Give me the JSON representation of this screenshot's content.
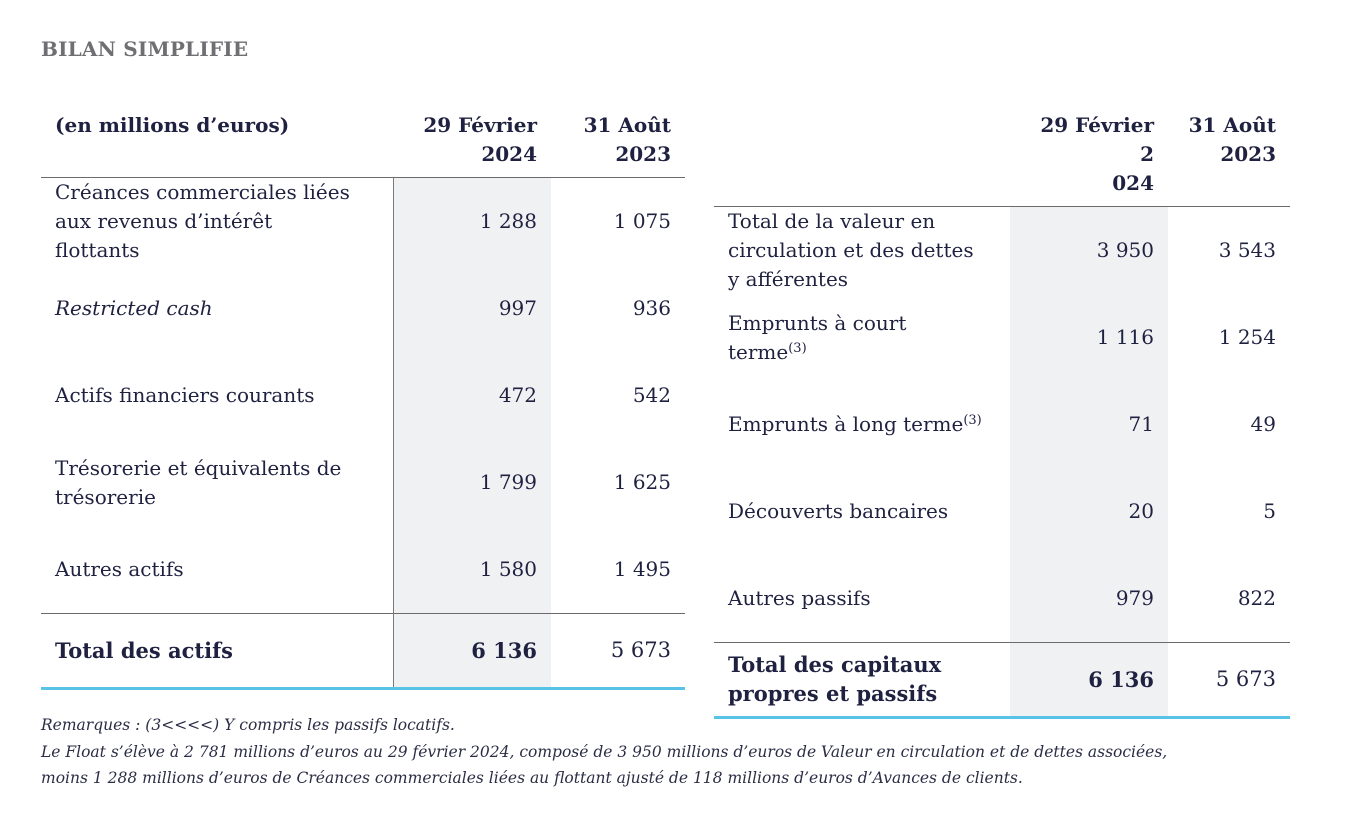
{
  "title": "BILAN SIMPLIFIE",
  "left_table": {
    "headers": [
      "(en millions d’euros)",
      "29 Février\n2024",
      "31 Août\n2023"
    ],
    "rows": [
      {
        "label": "Créances commerciales liées aux revenus d’intérêt flottants",
        "v2024": "1 288",
        "v2023": "1 075"
      },
      {
        "label": "Restricted cash",
        "v2024": "997",
        "v2023": "936"
      },
      {
        "label": "Actifs financiers courants",
        "v2024": "472",
        "v2023": "542"
      },
      {
        "label": "Trésorerie et équivalents de trésorerie",
        "v2024": "1 799",
        "v2023": "1 625"
      },
      {
        "label": "Autres actifs",
        "v2024": "1 580",
        "v2023": "1 495"
      }
    ],
    "total": {
      "label": "Total des actifs",
      "v2024": "6 136",
      "v2023": "5 673"
    }
  },
  "right_table": {
    "headers": [
      "",
      "29 Février 2\n024",
      "31 Août\n2023"
    ],
    "rows": [
      {
        "label": "Total de la valeur en circulation et des dettes y afférentes",
        "v2024": "3 950",
        "v2023": "3 543"
      },
      {
        "label": "Emprunts à court terme",
        "sup": "(3)",
        "v2024": "1 116",
        "v2023": "1 254"
      },
      {
        "label": "Emprunts à long terme",
        "sup": "(3)",
        "v2024": "71",
        "v2023": "49"
      },
      {
        "label": "Découverts bancaires",
        "v2024": "20",
        "v2023": "5"
      },
      {
        "label": "Autres passifs",
        "v2024": "979",
        "v2023": "822"
      }
    ],
    "total": {
      "label": "Total des capitaux propres et passifs",
      "v2024": "6 136",
      "v2023": "5 673"
    }
  },
  "notes": [
    "Remarques : (3<<<<) Y compris les passifs locatifs.",
    "Le Float s’élève à 2 781 millions d’euros au 29 février 2024, composé de 3 950 millions d’euros de Valeur en circulation et de dettes associées,",
    "moins 1 288 millions d’euros de Créances commerciales liées au flottant ajusté de 118 millions d’euros d’Avances de clients."
  ]
}
